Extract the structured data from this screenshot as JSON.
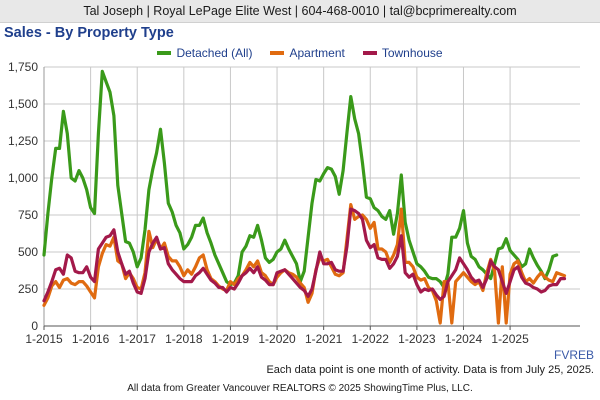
{
  "header": {
    "text": "Tal Joseph | Royal LePage Elite West | 604-468-0010 | tal@bcprimerealty.com"
  },
  "chart_data": {
    "type": "line",
    "title": "Sales - By Property Type",
    "xlabel": "",
    "ylabel": "",
    "x_ticks": [
      "1-2015",
      "1-2016",
      "1-2017",
      "1-2018",
      "1-2019",
      "1-2020",
      "1-2021",
      "1-2022",
      "1-2023",
      "1-2024",
      "1-2025"
    ],
    "x_start": "2015-01",
    "y_ticks": [
      "0",
      "250",
      "500",
      "750",
      "1,000",
      "1,250",
      "1,500",
      "1,750"
    ],
    "ylim": [
      0,
      1750
    ],
    "grid": true,
    "legend_position": "top",
    "series": [
      {
        "name": "Detached (All)",
        "color": "#3a9a1a",
        "values": [
          480,
          760,
          1000,
          1200,
          1200,
          1450,
          1300,
          1000,
          980,
          1050,
          1000,
          920,
          800,
          760,
          1300,
          1720,
          1650,
          1580,
          1420,
          950,
          760,
          570,
          560,
          500,
          400,
          460,
          650,
          920,
          1060,
          1170,
          1330,
          1100,
          830,
          770,
          680,
          630,
          520,
          550,
          600,
          680,
          680,
          730,
          630,
          560,
          480,
          420,
          360,
          300,
          280,
          290,
          340,
          500,
          540,
          610,
          600,
          680,
          580,
          460,
          430,
          450,
          500,
          520,
          580,
          520,
          470,
          420,
          300,
          370,
          600,
          830,
          990,
          980,
          1030,
          1070,
          1060,
          1010,
          890,
          1050,
          1310,
          1550,
          1400,
          1300,
          1100,
          870,
          860,
          800,
          780,
          740,
          720,
          780,
          620,
          760,
          1020,
          700,
          580,
          500,
          420,
          400,
          370,
          330,
          320,
          320,
          300,
          260,
          350,
          600,
          600,
          660,
          780,
          560,
          470,
          450,
          400,
          380,
          350,
          320,
          420,
          520,
          530,
          590,
          510,
          480,
          450,
          400,
          420,
          520,
          460,
          410,
          370,
          320,
          380,
          470,
          480
        ]
      },
      {
        "name": "Apartment",
        "color": "#e06b10",
        "values": [
          140,
          190,
          270,
          300,
          260,
          310,
          320,
          290,
          280,
          300,
          300,
          270,
          230,
          190,
          400,
          490,
          550,
          540,
          600,
          440,
          420,
          320,
          360,
          320,
          260,
          250,
          360,
          640,
          530,
          590,
          520,
          560,
          470,
          440,
          440,
          400,
          340,
          380,
          350,
          400,
          460,
          480,
          380,
          320,
          300,
          270,
          250,
          240,
          300,
          280,
          320,
          340,
          380,
          430,
          400,
          440,
          360,
          340,
          300,
          280,
          330,
          360,
          380,
          360,
          350,
          330,
          290,
          260,
          160,
          220,
          380,
          460,
          440,
          450,
          400,
          350,
          340,
          360,
          590,
          820,
          720,
          740,
          750,
          720,
          660,
          700,
          520,
          520,
          500,
          430,
          480,
          550,
          790,
          430,
          430,
          400,
          330,
          310,
          320,
          260,
          240,
          170,
          20,
          300,
          300,
          20,
          300,
          330,
          360,
          330,
          300,
          280,
          300,
          240,
          360,
          450,
          370,
          20,
          400,
          20,
          350,
          420,
          440,
          360,
          300,
          320,
          290,
          330,
          360,
          330,
          310,
          300,
          360,
          350,
          340
        ]
      },
      {
        "name": "Townhouse",
        "color": "#a3194a",
        "values": [
          170,
          230,
          300,
          380,
          390,
          350,
          480,
          460,
          370,
          360,
          360,
          400,
          330,
          300,
          520,
          560,
          600,
          610,
          650,
          500,
          420,
          350,
          370,
          290,
          230,
          220,
          320,
          500,
          560,
          600,
          520,
          530,
          420,
          380,
          350,
          320,
          300,
          300,
          300,
          340,
          360,
          390,
          350,
          310,
          290,
          260,
          260,
          230,
          260,
          250,
          290,
          340,
          360,
          390,
          360,
          400,
          330,
          310,
          280,
          280,
          360,
          370,
          380,
          350,
          320,
          290,
          260,
          240,
          200,
          250,
          370,
          500,
          420,
          420,
          430,
          380,
          370,
          370,
          540,
          790,
          780,
          760,
          720,
          580,
          530,
          550,
          460,
          450,
          450,
          390,
          420,
          470,
          610,
          360,
          330,
          350,
          280,
          230,
          250,
          240,
          250,
          210,
          180,
          200,
          300,
          340,
          380,
          460,
          420,
          380,
          330,
          300,
          310,
          260,
          320,
          440,
          400,
          380,
          300,
          220,
          300,
          380,
          400,
          330,
          290,
          280,
          260,
          250,
          230,
          240,
          270,
          280,
          280,
          320,
          320
        ]
      }
    ]
  },
  "source_tag": "FVREB",
  "note": "Each data point is one month of activity. Data is from July 25, 2025.",
  "footer": "All data from Greater Vancouver REALTORS © 2025 ShowingTime Plus, LLC."
}
